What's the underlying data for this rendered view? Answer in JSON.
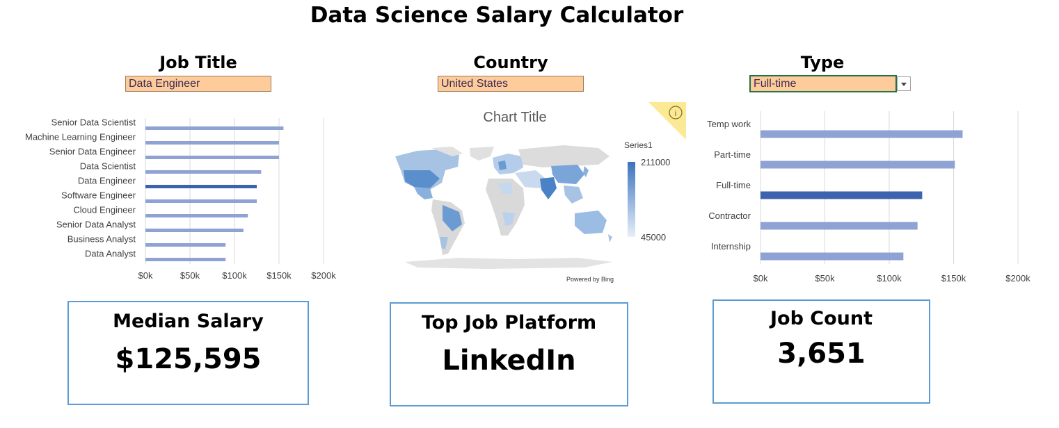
{
  "title": "Data Science Salary Calculator",
  "filters": {
    "job_title": {
      "label": "Job Title",
      "value": "Data Engineer"
    },
    "country": {
      "label": "Country",
      "value": "United States"
    },
    "type": {
      "label": "Type",
      "value": "Full-time"
    }
  },
  "colors": {
    "bar": "#8fa2d4",
    "bar_highlight": "#3c64ae",
    "filter_fill": "#fecb9a",
    "kpi_border": "#5b9bd5",
    "map_gray": "#d9d9d9"
  },
  "map_chart": {
    "title": "Chart Title",
    "legend_series": "Series1",
    "legend_max": "211000",
    "legend_min": "45000",
    "powered_by": "Powered by Bing",
    "info_icon": "info-icon"
  },
  "kpis": {
    "median_salary": {
      "label": "Median Salary",
      "value": "$125,595"
    },
    "top_platform": {
      "label": "Top Job Platform",
      "value": "LinkedIn"
    },
    "job_count": {
      "label": "Job Count",
      "value": "3,651"
    }
  },
  "chart_data": [
    {
      "type": "bar",
      "orientation": "horizontal",
      "categories": [
        "Senior Data Scientist",
        "Machine Learning Engineer",
        "Senior Data Engineer",
        "Data Scientist",
        "Data Engineer",
        "Software Engineer",
        "Cloud Engineer",
        "Senior Data Analyst",
        "Business Analyst",
        "Data Analyst"
      ],
      "values": [
        155000,
        150000,
        150000,
        130000,
        125000,
        125000,
        115000,
        110000,
        90000,
        90000
      ],
      "highlight": "Data Engineer",
      "xlim": [
        0,
        200000
      ],
      "xticks": [
        "$0k",
        "$50k",
        "$100k",
        "$150k",
        "$200k"
      ],
      "grid": true
    },
    {
      "type": "bar",
      "orientation": "horizontal",
      "categories": [
        "Temp work",
        "Part-time",
        "Full-time",
        "Contractor",
        "Internship"
      ],
      "values": [
        157000,
        151000,
        125595,
        122000,
        111000
      ],
      "highlight": "Full-time",
      "xlim": [
        0,
        200000
      ],
      "xticks": [
        "$0k",
        "$50k",
        "$100k",
        "$150k",
        "$200k"
      ],
      "grid": true
    }
  ]
}
